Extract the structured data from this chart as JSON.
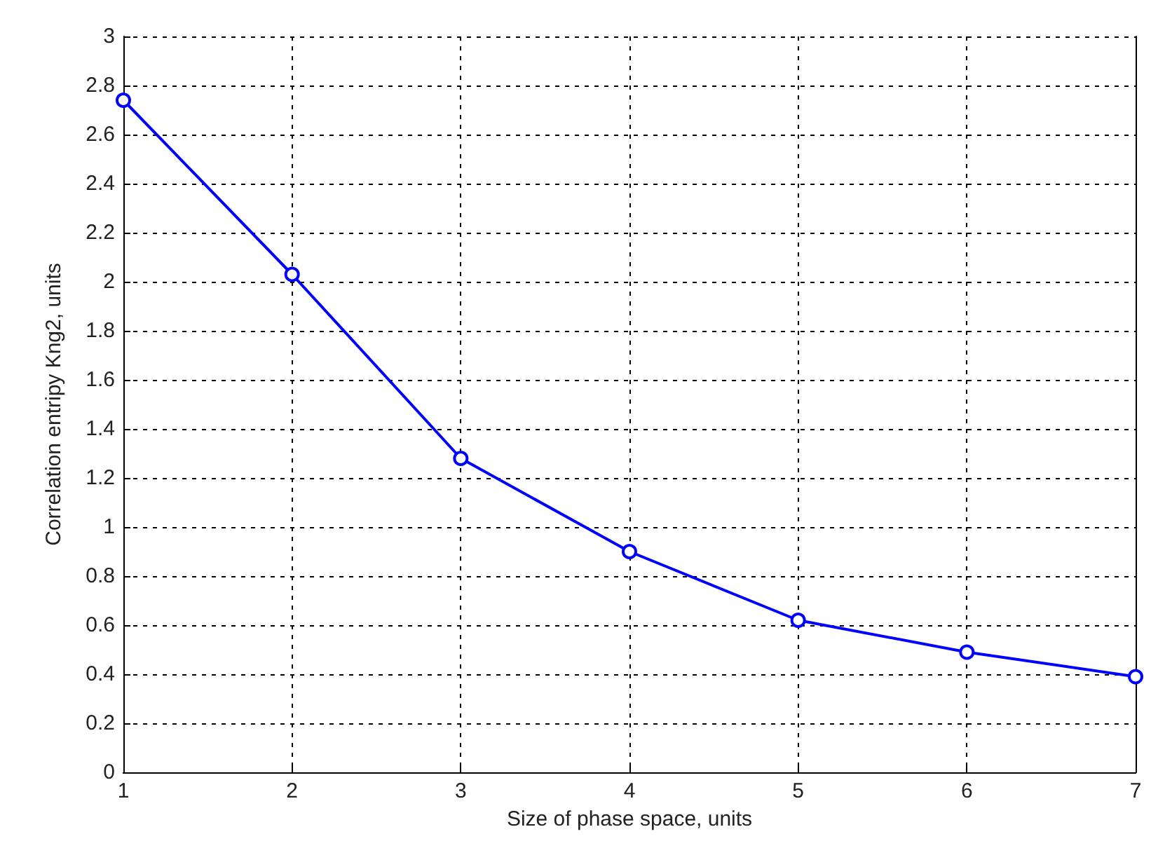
{
  "chart_data": {
    "type": "line",
    "xlabel": "Size of phase space, units",
    "ylabel": "Correlation entripy Kng2, units",
    "x": [
      1,
      2,
      3,
      4,
      5,
      6,
      7
    ],
    "series": [
      {
        "color": "#0000ff",
        "values": [
          2.74,
          2.03,
          1.28,
          0.9,
          0.62,
          0.49,
          0.39
        ]
      }
    ],
    "xlim": [
      1,
      7
    ],
    "xticks": [
      1,
      2,
      3,
      4,
      5,
      6,
      7
    ],
    "ylim": [
      0,
      3
    ],
    "yticks": [
      0,
      0.2,
      0.4,
      0.6,
      0.8,
      1,
      1.2,
      1.4,
      1.6,
      1.8,
      2,
      2.2,
      2.4,
      2.6,
      2.8,
      3
    ],
    "grid": true,
    "marker": "circle",
    "line_style": "solid"
  }
}
